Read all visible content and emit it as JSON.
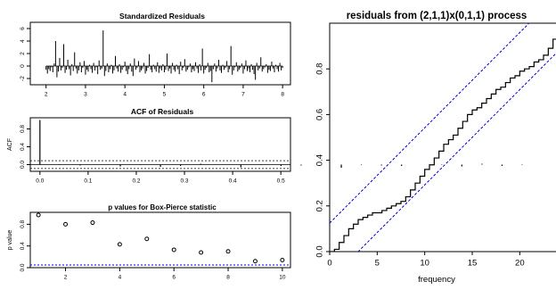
{
  "chart_data": [
    {
      "type": "bar",
      "title": "Standardized Residuals",
      "xlabel": "",
      "ylabel": "",
      "xlim": [
        1.6,
        8.2
      ],
      "ylim": [
        -3,
        7
      ],
      "x_ticks": [
        "2",
        "3",
        "4",
        "5",
        "6",
        "7",
        "8"
      ],
      "y_ticks": [
        "-2",
        "0",
        "2",
        "4",
        "6"
      ],
      "x_tick_values": [
        2,
        3,
        4,
        5,
        6,
        7,
        8
      ],
      "y_tick_values": [
        -2,
        0,
        2,
        4,
        6
      ],
      "x_start": 2.0,
      "x_end": 8.0,
      "values": [
        -0.6,
        -1.2,
        -0.5,
        -0.8,
        -0.2,
        -1.0,
        0.4,
        4.0,
        -1.8,
        -0.9,
        1.3,
        -0.7,
        -0.3,
        3.5,
        -1.1,
        -0.6,
        1.0,
        -0.5,
        -1.5,
        0.3,
        -0.8,
        2.2,
        -0.4,
        -1.2,
        -0.7,
        0.6,
        -1.0,
        -0.3,
        0.8,
        -1.4,
        -0.6,
        -0.9,
        0.2,
        -0.5,
        -1.1,
        0.5,
        -0.7,
        -0.2,
        -1.3,
        0.9,
        -0.6,
        -0.4,
        5.7,
        -1.6,
        -0.8,
        0.4,
        -1.0,
        -0.5,
        0.2,
        -1.2,
        -0.7,
        1.6,
        -0.4,
        -0.9,
        0.3,
        -1.1,
        -0.6,
        -0.2,
        0.7,
        -0.8,
        -1.3,
        -0.5,
        0.4,
        -0.9,
        -1.6,
        1.2,
        -0.6,
        -0.3,
        0.8,
        -1.0,
        -0.7,
        -0.4,
        0.5,
        -1.2,
        -0.8,
        -0.3,
        1.9,
        -0.6,
        -1.0,
        0.2,
        -0.5,
        -0.9,
        0.6,
        -1.1,
        -0.4,
        -0.7,
        0.3,
        -1.0,
        -0.6,
        2.0,
        -0.8,
        -0.4,
        -1.2,
        0.5,
        -0.6,
        -0.9,
        0.2,
        -0.5,
        -1.3,
        0.7,
        -0.7,
        -0.3,
        1.1,
        -0.9,
        -0.6,
        -0.2,
        0.4,
        -1.0,
        -0.5,
        -0.8,
        0.6,
        -0.4,
        -1.1,
        0.3,
        -0.7,
        2.8,
        -1.2,
        -0.6,
        -0.3,
        0.5,
        -1.0,
        -0.8,
        -2.6,
        -0.5,
        0.4,
        -0.9,
        -0.4,
        1.0,
        -0.7,
        -1.1,
        0.2,
        -0.6,
        -0.3,
        0.8,
        -1.0,
        -0.5,
        3.2,
        -1.4,
        -0.7,
        -0.2,
        0.6,
        -0.9,
        -0.6,
        -0.3,
        0.4,
        -1.2,
        -0.5,
        0.9,
        -0.8,
        -0.4,
        -1.0,
        0.3,
        -0.6,
        -1.3,
        -2.2,
        0.5,
        -0.7,
        -0.4,
        1.4,
        -0.9,
        -0.5,
        -0.2,
        0.3,
        -1.1,
        -0.6,
        -0.8,
        0.7,
        -0.4,
        -1.0,
        0.2,
        -0.5,
        -0.9,
        0.5,
        -0.7,
        -0.3
      ],
      "reference_line": 0
    },
    {
      "type": "bar",
      "title": "ACF of Residuals",
      "ylabel": "ACF",
      "xlim": [
        -0.02,
        0.52
      ],
      "ylim": [
        -0.15,
        1.05
      ],
      "x_ticks": [
        "0.0",
        "0.1",
        "0.2",
        "0.3",
        "0.4",
        "0.5"
      ],
      "y_ticks": [
        "0.0",
        "0.4",
        "0.8"
      ],
      "x_tick_values": [
        0.0,
        0.1,
        0.2,
        0.3,
        0.4,
        0.5
      ],
      "y_tick_values": [
        0.0,
        0.4,
        0.8
      ],
      "lag_step": 0.0417,
      "values": [
        1.0,
        0.01,
        -0.02,
        0.0,
        -0.04,
        0.01,
        -0.05,
        -0.03,
        0.02,
        0.0,
        -0.06,
        0.01,
        -0.03,
        -0.02,
        0.0,
        -0.07,
        0.01,
        -0.02,
        -0.03,
        0.0,
        -0.01,
        -0.04,
        0.02,
        -0.03,
        -0.01
      ],
      "confidence_band": [
        -0.087,
        0.087
      ]
    },
    {
      "type": "scatter",
      "title": "p values for Box-Pierce statistic",
      "ylabel": "p value",
      "xlim": [
        0.7,
        10.3
      ],
      "ylim": [
        0.0,
        1.02
      ],
      "x_ticks": [
        "2",
        "4",
        "6",
        "8",
        "10"
      ],
      "y_ticks": [
        "0.0",
        "0.4",
        "0.8"
      ],
      "x_tick_values": [
        2,
        4,
        6,
        8,
        10
      ],
      "y_tick_values": [
        0.0,
        0.4,
        0.8
      ],
      "x": [
        1,
        2,
        3,
        4,
        5,
        6,
        7,
        8,
        9,
        10
      ],
      "y": [
        0.97,
        0.8,
        0.83,
        0.43,
        0.53,
        0.33,
        0.28,
        0.3,
        0.12,
        0.14
      ],
      "reference_line": 0.05
    },
    {
      "type": "line",
      "title": "residuals from (2,1,1)x(0,1,1) process",
      "xlabel": "frequency",
      "ylabel": "",
      "xlim": [
        0,
        24
      ],
      "ylim": [
        0,
        1
      ],
      "x_ticks": [
        "0",
        "5",
        "10",
        "15",
        "20"
      ],
      "y_ticks": [
        "0.0",
        "0.2",
        "0.4",
        "0.6",
        "0.8"
      ],
      "x_tick_values": [
        0,
        5,
        10,
        15,
        20
      ],
      "y_tick_values": [
        0.0,
        0.2,
        0.4,
        0.6,
        0.8
      ],
      "x": [
        0.0,
        0.5,
        1.0,
        1.5,
        2.0,
        2.5,
        3.0,
        3.5,
        4.0,
        4.5,
        5.0,
        5.5,
        6.0,
        6.5,
        7.0,
        7.5,
        8.0,
        8.5,
        9.0,
        9.5,
        10.0,
        10.5,
        11.0,
        11.5,
        12.0,
        12.5,
        13.0,
        13.5,
        14.0,
        14.5,
        15.0,
        15.5,
        16.0,
        16.5,
        17.0,
        17.5,
        18.0,
        18.5,
        19.0,
        19.5,
        20.0,
        20.5,
        21.0,
        21.5,
        22.0,
        22.5,
        23.0,
        23.5,
        24.0
      ],
      "y": [
        0.0,
        0.01,
        0.04,
        0.07,
        0.1,
        0.12,
        0.14,
        0.15,
        0.16,
        0.17,
        0.17,
        0.18,
        0.19,
        0.2,
        0.21,
        0.22,
        0.24,
        0.27,
        0.3,
        0.33,
        0.36,
        0.38,
        0.41,
        0.44,
        0.47,
        0.49,
        0.51,
        0.54,
        0.57,
        0.6,
        0.62,
        0.63,
        0.65,
        0.67,
        0.69,
        0.71,
        0.72,
        0.74,
        0.76,
        0.77,
        0.79,
        0.8,
        0.81,
        0.83,
        0.84,
        0.86,
        0.89,
        0.93,
        0.96
      ],
      "bounds_slope": 0.0417,
      "bounds_offset": 0.125,
      "bounds_color": "#0000cc"
    }
  ]
}
